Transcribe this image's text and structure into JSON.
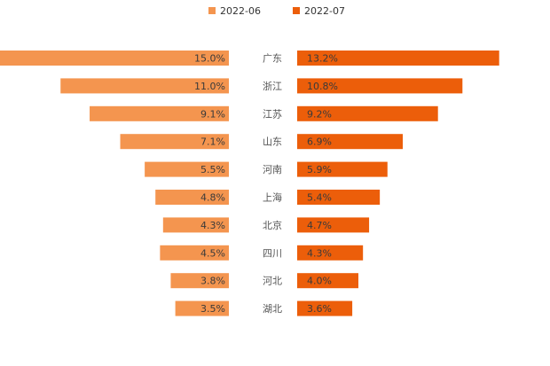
{
  "chart_data": {
    "type": "bar",
    "orientation": "horizontal-butterfly",
    "title": "",
    "xlabel": "",
    "ylabel": "",
    "categories": [
      "广东",
      "浙江",
      "江苏",
      "山东",
      "河南",
      "上海",
      "北京",
      "四川",
      "河北",
      "湖北"
    ],
    "series": [
      {
        "name": "2022-06",
        "color": "#F4954F",
        "values": [
          15.0,
          11.0,
          9.1,
          7.1,
          5.5,
          4.8,
          4.3,
          4.5,
          3.8,
          3.5
        ],
        "labels": [
          "15.0%",
          "11.0%",
          "9.1%",
          "7.1%",
          "5.5%",
          "4.8%",
          "4.3%",
          "4.5%",
          "3.8%",
          "3.5%"
        ]
      },
      {
        "name": "2022-07",
        "color": "#EC5E0A",
        "values": [
          13.2,
          10.8,
          9.2,
          6.9,
          5.9,
          5.4,
          4.7,
          4.3,
          4.0,
          3.6
        ],
        "labels": [
          "13.2%",
          "10.8%",
          "9.2%",
          "6.9%",
          "5.9%",
          "5.4%",
          "4.7%",
          "4.3%",
          "4.0%",
          "3.6%"
        ]
      }
    ],
    "legend_position": "top-center",
    "grid": false
  }
}
